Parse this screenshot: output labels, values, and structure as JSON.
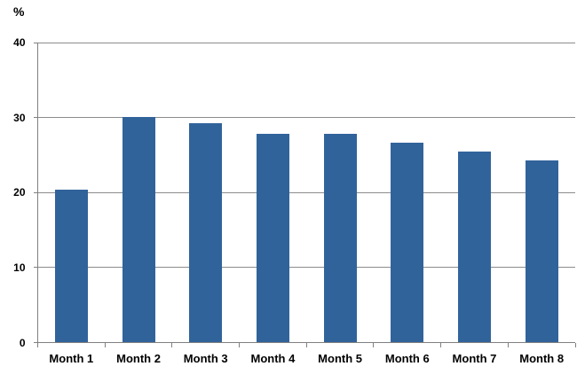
{
  "chart_data": {
    "type": "bar",
    "title": "",
    "xlabel": "",
    "ylabel": "%",
    "categories": [
      "Month 1",
      "Month 2",
      "Month 3",
      "Month 4",
      "Month 5",
      "Month 6",
      "Month 7",
      "Month 8"
    ],
    "values": [
      20.4,
      30.1,
      29.2,
      27.8,
      27.8,
      26.7,
      25.5,
      24.3
    ],
    "ylim": [
      0,
      40
    ],
    "yticks": [
      0,
      10,
      20,
      30,
      40
    ],
    "grid": true,
    "legend": false,
    "colors": {
      "bar": "#31639B",
      "gridline": "#8C8C8C",
      "axis": "#808080",
      "text": "#000000",
      "background": "#FFFFFF"
    }
  }
}
